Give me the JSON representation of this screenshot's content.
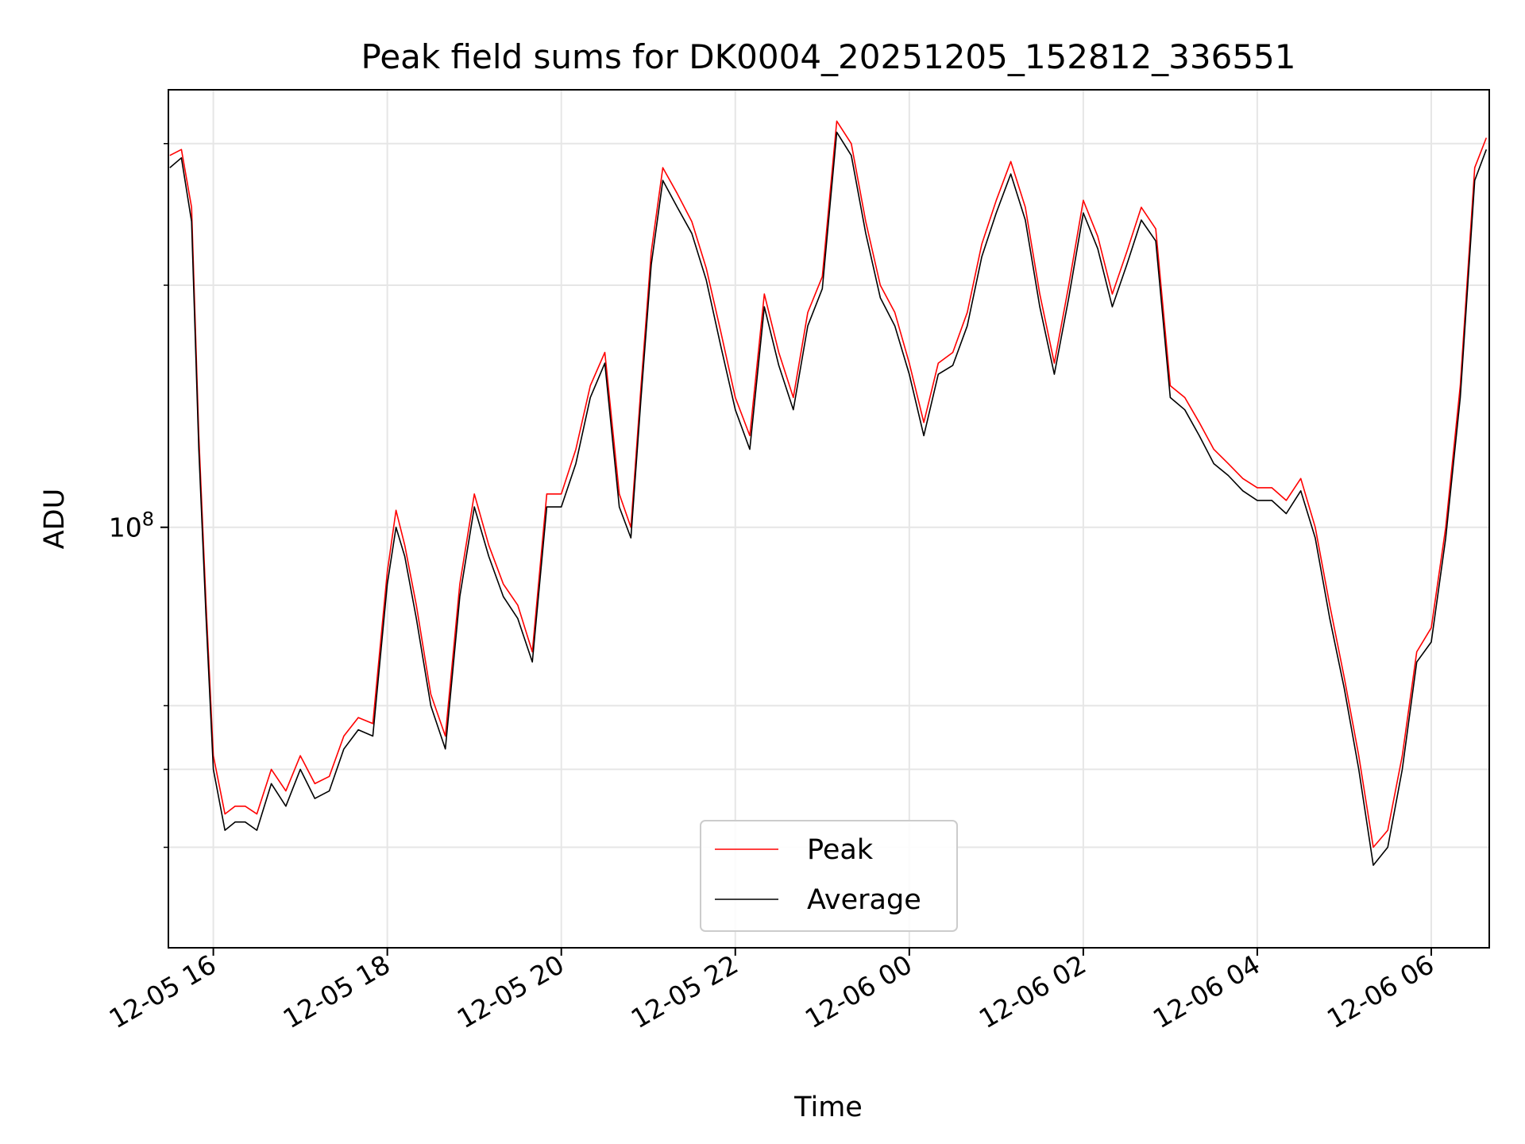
{
  "chart_data": {
    "type": "line",
    "title": "Peak field sums for DK0004_20251205_152812_336551",
    "xlabel": "Time",
    "ylabel": "ADU",
    "yscale": "log",
    "ylim": [
      30000000,
      350000000
    ],
    "xlim": [
      "2025-12-05 15:29",
      "2025-12-06 06:40"
    ],
    "grid": true,
    "legend_position": "lower center",
    "x_tick_labels": [
      "12-05 16",
      "12-05 18",
      "12-05 20",
      "12-05 22",
      "12-06 00",
      "12-06 02",
      "12-06 04",
      "12-06 06"
    ],
    "y_tick_labels": [
      "10^8"
    ],
    "x": [
      "2025-12-05 15:30",
      "2025-12-05 15:38",
      "2025-12-05 15:45",
      "2025-12-05 15:50",
      "2025-12-05 15:55",
      "2025-12-05 16:00",
      "2025-12-05 16:08",
      "2025-12-05 16:15",
      "2025-12-05 16:22",
      "2025-12-05 16:30",
      "2025-12-05 16:40",
      "2025-12-05 16:50",
      "2025-12-05 17:00",
      "2025-12-05 17:10",
      "2025-12-05 17:20",
      "2025-12-05 17:30",
      "2025-12-05 17:40",
      "2025-12-05 17:50",
      "2025-12-05 18:00",
      "2025-12-05 18:06",
      "2025-12-05 18:12",
      "2025-12-05 18:20",
      "2025-12-05 18:30",
      "2025-12-05 18:40",
      "2025-12-05 18:50",
      "2025-12-05 19:00",
      "2025-12-05 19:10",
      "2025-12-05 19:20",
      "2025-12-05 19:30",
      "2025-12-05 19:40",
      "2025-12-05 19:50",
      "2025-12-05 20:00",
      "2025-12-05 20:10",
      "2025-12-05 20:20",
      "2025-12-05 20:30",
      "2025-12-05 20:40",
      "2025-12-05 20:48",
      "2025-12-05 20:55",
      "2025-12-05 21:02",
      "2025-12-05 21:10",
      "2025-12-05 21:20",
      "2025-12-05 21:30",
      "2025-12-05 21:40",
      "2025-12-05 21:50",
      "2025-12-05 22:00",
      "2025-12-05 22:10",
      "2025-12-05 22:20",
      "2025-12-05 22:30",
      "2025-12-05 22:40",
      "2025-12-05 22:50",
      "2025-12-05 23:00",
      "2025-12-05 23:10",
      "2025-12-05 23:20",
      "2025-12-05 23:30",
      "2025-12-05 23:40",
      "2025-12-05 23:50",
      "2025-12-06 00:00",
      "2025-12-06 00:10",
      "2025-12-06 00:20",
      "2025-12-06 00:30",
      "2025-12-06 00:40",
      "2025-12-06 00:50",
      "2025-12-06 01:00",
      "2025-12-06 01:10",
      "2025-12-06 01:20",
      "2025-12-06 01:30",
      "2025-12-06 01:40",
      "2025-12-06 01:50",
      "2025-12-06 02:00",
      "2025-12-06 02:10",
      "2025-12-06 02:20",
      "2025-12-06 02:30",
      "2025-12-06 02:40",
      "2025-12-06 02:50",
      "2025-12-06 03:00",
      "2025-12-06 03:10",
      "2025-12-06 03:20",
      "2025-12-06 03:30",
      "2025-12-06 03:40",
      "2025-12-06 03:50",
      "2025-12-06 04:00",
      "2025-12-06 04:10",
      "2025-12-06 04:20",
      "2025-12-06 04:30",
      "2025-12-06 04:40",
      "2025-12-06 04:50",
      "2025-12-06 05:00",
      "2025-12-06 05:10",
      "2025-12-06 05:20",
      "2025-12-06 05:30",
      "2025-12-06 05:40",
      "2025-12-06 05:50",
      "2025-12-06 06:00",
      "2025-12-06 06:10",
      "2025-12-06 06:20",
      "2025-12-06 06:30",
      "2025-12-06 06:38"
    ],
    "series": [
      {
        "name": "Peak",
        "color": "#ff0000",
        "values": [
          290000000,
          295000000,
          250000000,
          130000000,
          80000000,
          52000000,
          44000000,
          45000000,
          45000000,
          44000000,
          50000000,
          47000000,
          52000000,
          48000000,
          49000000,
          55000000,
          58000000,
          57000000,
          88000000,
          105000000,
          95000000,
          80000000,
          62000000,
          55000000,
          85000000,
          110000000,
          95000000,
          85000000,
          80000000,
          70000000,
          110000000,
          110000000,
          125000000,
          150000000,
          165000000,
          110000000,
          100000000,
          150000000,
          220000000,
          280000000,
          260000000,
          240000000,
          210000000,
          175000000,
          145000000,
          130000000,
          195000000,
          165000000,
          145000000,
          185000000,
          205000000,
          320000000,
          300000000,
          240000000,
          200000000,
          185000000,
          160000000,
          135000000,
          160000000,
          165000000,
          185000000,
          225000000,
          255000000,
          285000000,
          250000000,
          195000000,
          160000000,
          200000000,
          255000000,
          230000000,
          195000000,
          220000000,
          250000000,
          235000000,
          150000000,
          145000000,
          135000000,
          125000000,
          120000000,
          115000000,
          112000000,
          112000000,
          108000000,
          115000000,
          100000000,
          80000000,
          65000000,
          52000000,
          40000000,
          42000000,
          52000000,
          70000000,
          75000000,
          100000000,
          150000000,
          280000000,
          305000000
        ]
      },
      {
        "name": "Average",
        "color": "#000000",
        "values": [
          280000000,
          288000000,
          240000000,
          125000000,
          77000000,
          50000000,
          42000000,
          43000000,
          43000000,
          42000000,
          48000000,
          45000000,
          50000000,
          46000000,
          47000000,
          53000000,
          56000000,
          55000000,
          85000000,
          100000000,
          92000000,
          77000000,
          60000000,
          53000000,
          82000000,
          106000000,
          92000000,
          82000000,
          77000000,
          68000000,
          106000000,
          106000000,
          120000000,
          145000000,
          160000000,
          106000000,
          97000000,
          145000000,
          212000000,
          270000000,
          250000000,
          232000000,
          203000000,
          168000000,
          140000000,
          125000000,
          188000000,
          159000000,
          140000000,
          178000000,
          198000000,
          310000000,
          290000000,
          232000000,
          193000000,
          178000000,
          155000000,
          130000000,
          155000000,
          159000000,
          178000000,
          217000000,
          246000000,
          275000000,
          241000000,
          188000000,
          155000000,
          193000000,
          246000000,
          222000000,
          188000000,
          212000000,
          241000000,
          227000000,
          145000000,
          140000000,
          130000000,
          120000000,
          116000000,
          111000000,
          108000000,
          108000000,
          104000000,
          111000000,
          97000000,
          77000000,
          63000000,
          50000000,
          38000000,
          40000000,
          50000000,
          68000000,
          72000000,
          97000000,
          145000000,
          270000000,
          295000000
        ]
      }
    ]
  }
}
